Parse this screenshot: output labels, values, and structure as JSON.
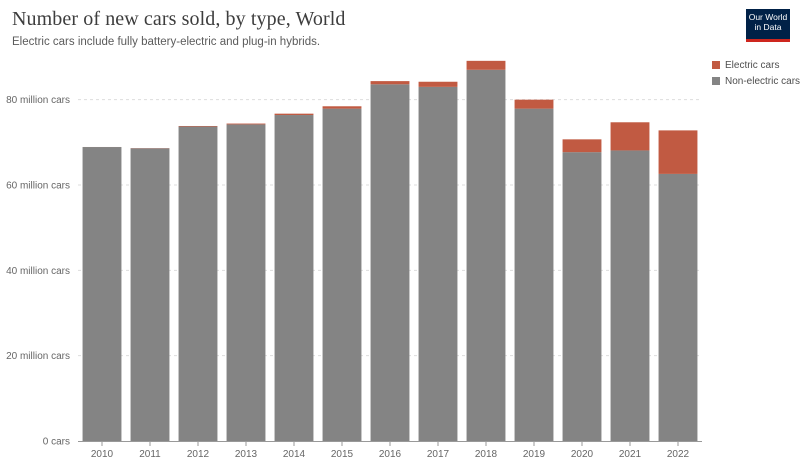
{
  "header": {
    "title": "Number of new cars sold, by type, World",
    "subtitle": "Electric cars include fully battery-electric and plug-in hybrids.",
    "logo_line1": "Our World",
    "logo_line2": "in Data"
  },
  "legend": {
    "items": [
      {
        "label": "Electric cars",
        "color": "#c15a42"
      },
      {
        "label": "Non-electric cars",
        "color": "#848484"
      }
    ]
  },
  "chart_data": {
    "type": "bar",
    "stacked": true,
    "title": "Number of new cars sold, by type, World",
    "subtitle": "Electric cars include fully battery-electric and plug-in hybrids.",
    "categories": [
      "2010",
      "2011",
      "2012",
      "2013",
      "2014",
      "2015",
      "2016",
      "2017",
      "2018",
      "2019",
      "2020",
      "2021",
      "2022"
    ],
    "series": [
      {
        "name": "Non-electric cars",
        "color": "#848484",
        "values": [
          68.9,
          68.6,
          73.7,
          74.2,
          76.4,
          77.9,
          83.6,
          83.0,
          87.0,
          77.9,
          67.7,
          68.1,
          62.6
        ]
      },
      {
        "name": "Electric cars",
        "color": "#c15a42",
        "values": [
          0.01,
          0.05,
          0.13,
          0.2,
          0.32,
          0.55,
          0.75,
          1.2,
          2.1,
          2.1,
          3.0,
          6.6,
          10.2
        ]
      }
    ],
    "y_ticks": [
      {
        "value": 0,
        "label": "0 cars"
      },
      {
        "value": 20,
        "label": "20 million cars"
      },
      {
        "value": 40,
        "label": "40 million cars"
      },
      {
        "value": 60,
        "label": "60 million cars"
      },
      {
        "value": 80,
        "label": "80 million cars"
      }
    ],
    "ylim": [
      0,
      90
    ],
    "grid": true,
    "legend_position": "top-right"
  }
}
